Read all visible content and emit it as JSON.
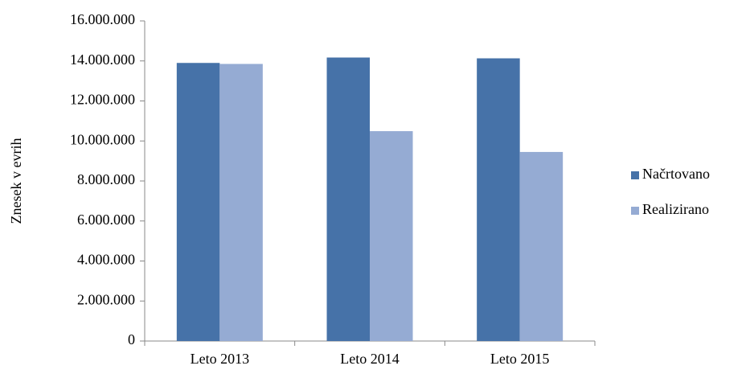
{
  "chart_data": {
    "type": "bar",
    "y_label": "Znesek v evrih",
    "categories": [
      "Leto 2013",
      "Leto 2014",
      "Leto 2015"
    ],
    "series": [
      {
        "name": "Načrtovano",
        "color": "#4672a8",
        "values": [
          13900000,
          14170000,
          14130000
        ]
      },
      {
        "name": "Realizirano",
        "color": "#95abd3",
        "values": [
          13850000,
          10490000,
          9450000
        ]
      }
    ],
    "ylim": [
      0,
      16000000
    ],
    "yticks": [
      0,
      {
        "value": 2000000,
        "label": "2.000.000"
      },
      {
        "value": 4000000,
        "label": "4.000.000"
      },
      {
        "value": 6000000,
        "label": "6.000.000"
      },
      {
        "value": 8000000,
        "label": "8.000.000"
      },
      {
        "value": 10000000,
        "label": "10.000.000"
      },
      {
        "value": 12000000,
        "label": "12.000.000"
      },
      {
        "value": 14000000,
        "label": "14.000.000"
      },
      {
        "value": 16000000,
        "label": "16.000.000"
      }
    ],
    "legend": "right",
    "grid": false
  }
}
